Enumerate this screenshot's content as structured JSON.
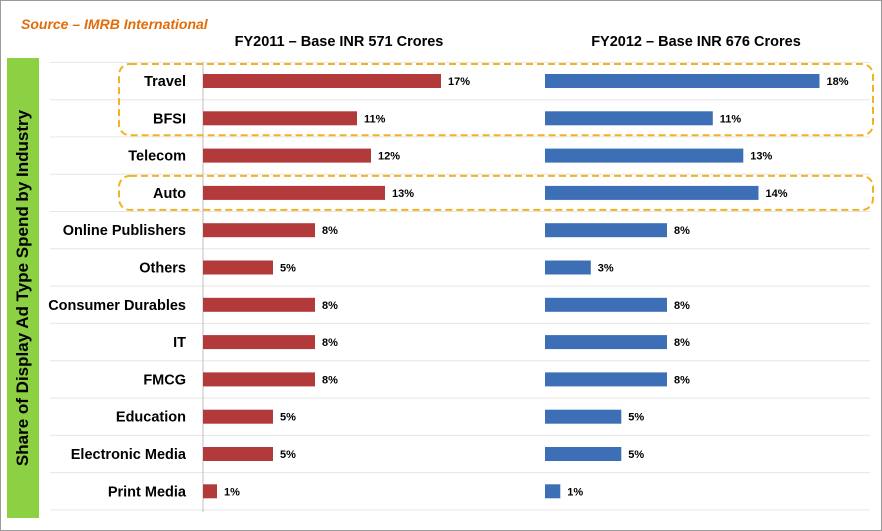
{
  "source": "Source – IMRB International",
  "colors": {
    "fy2011": "#b33a3a",
    "fy2012": "#3d6fb6",
    "highlight": "#f0b323",
    "ylabel_bg": "#8cd044",
    "source_text": "#e36c0a"
  },
  "chart_data": {
    "type": "bar",
    "orientation": "horizontal",
    "ylabel": "Share of Display Ad Type Spend by Industry",
    "categories": [
      "Travel",
      "BFSI",
      "Telecom",
      "Auto",
      "Online Publishers",
      "Others",
      "Consumer Durables",
      "IT",
      "FMCG",
      "Education",
      "Electronic Media",
      "Print Media"
    ],
    "series": [
      {
        "name": "FY2011 – Base INR 571 Crores",
        "values": [
          17,
          11,
          12,
          13,
          8,
          5,
          8,
          8,
          8,
          5,
          5,
          1
        ],
        "labels": [
          "17%",
          "11%",
          "12%",
          "13%",
          "8%",
          "5%",
          "8%",
          "8%",
          "8%",
          "5%",
          "5%",
          "1%"
        ]
      },
      {
        "name": "FY2012 – Base INR 676 Crores",
        "values": [
          18,
          11,
          13,
          14,
          8,
          3,
          8,
          8,
          8,
          5,
          5,
          1
        ],
        "labels": [
          "18%",
          "11%",
          "13%",
          "14%",
          "8%",
          "3%",
          "8%",
          "8%",
          "8%",
          "5%",
          "5%",
          "1%"
        ]
      }
    ],
    "highlighted_groups": [
      [
        "Travel",
        "BFSI"
      ],
      [
        "Auto"
      ]
    ],
    "grid": true
  }
}
